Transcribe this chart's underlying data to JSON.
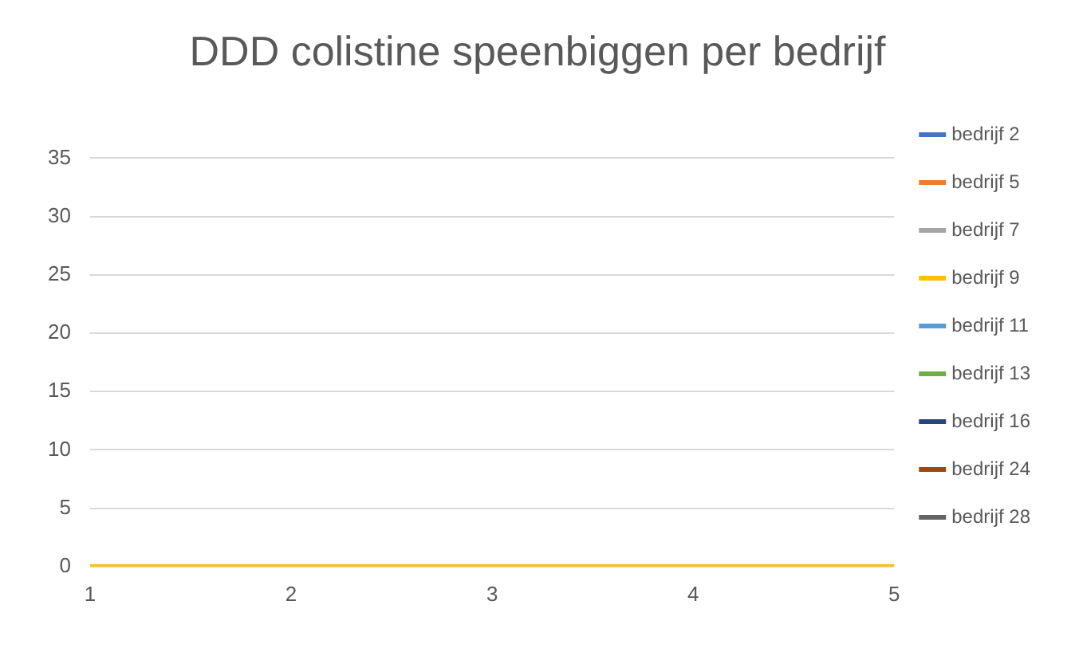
{
  "chart_data": {
    "type": "line",
    "title": "DDD colistine speenbiggen per bedrijf",
    "categories": [
      "1",
      "2",
      "3",
      "4",
      "5"
    ],
    "series": [
      {
        "name": "bedrijf 2",
        "color": "#4472c4",
        "values": [
          null,
          null,
          null,
          null,
          null
        ]
      },
      {
        "name": "bedrijf 5",
        "color": "#ed7d31",
        "values": [
          null,
          null,
          null,
          null,
          null
        ]
      },
      {
        "name": "bedrijf 7",
        "color": "#a5a5a5",
        "values": [
          null,
          null,
          null,
          null,
          null
        ]
      },
      {
        "name": "bedrijf 9",
        "color": "#ffc000",
        "values": [
          0,
          0,
          0,
          0,
          0
        ]
      },
      {
        "name": "bedrijf 11",
        "color": "#5b9bd5",
        "values": [
          null,
          null,
          null,
          null,
          null
        ]
      },
      {
        "name": "bedrijf 13",
        "color": "#70ad47",
        "values": [
          null,
          null,
          null,
          null,
          null
        ]
      },
      {
        "name": "bedrijf 16",
        "color": "#264478",
        "values": [
          null,
          null,
          null,
          null,
          null
        ]
      },
      {
        "name": "bedrijf 24",
        "color": "#9e480e",
        "values": [
          null,
          null,
          null,
          null,
          null
        ]
      },
      {
        "name": "bedrijf 28",
        "color": "#636363",
        "values": [
          null,
          null,
          null,
          null,
          null
        ]
      }
    ],
    "ylim": [
      0,
      35
    ],
    "yticks": [
      0,
      5,
      10,
      15,
      20,
      25,
      30,
      35
    ],
    "grid": "y",
    "legend": "right",
    "marker": "none",
    "line_style": "solid"
  }
}
